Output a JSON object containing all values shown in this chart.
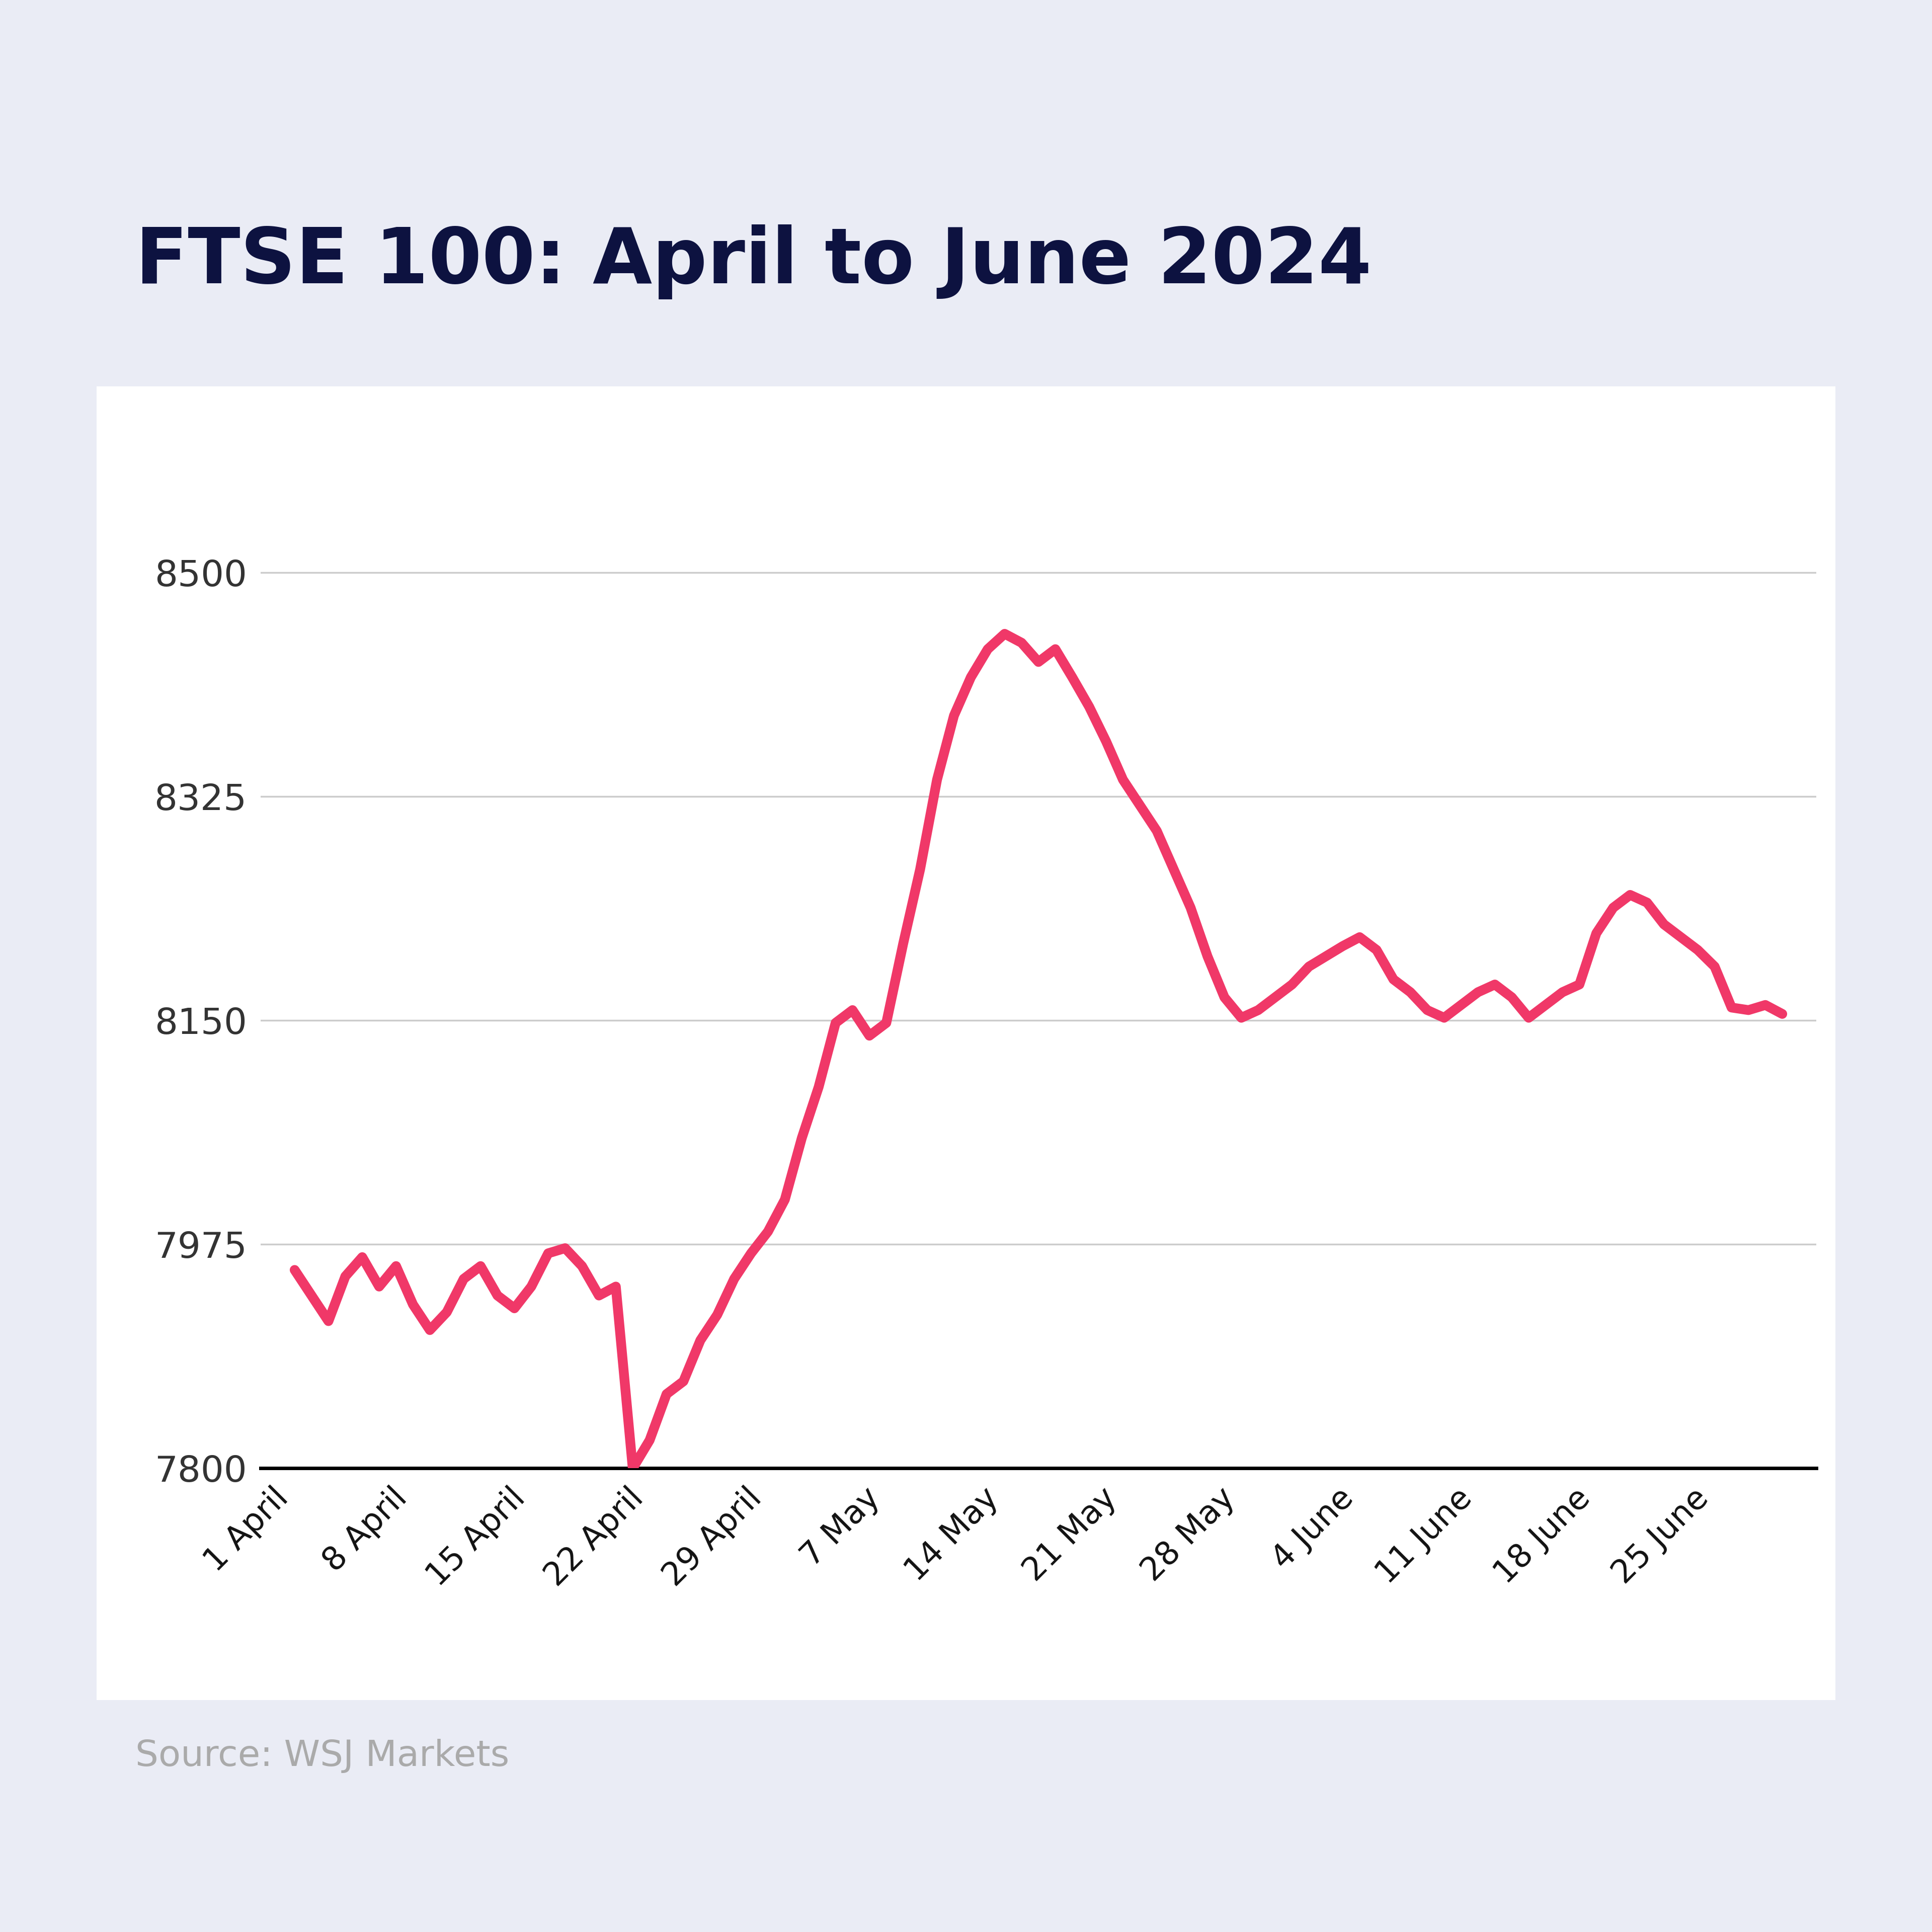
{
  "title": "FTSE 100: April to June 2024",
  "source": "Source: WSJ Markets",
  "background_color": "#eaecf5",
  "chart_background": "#ffffff",
  "line_color": "#f03868",
  "line_width": 14,
  "title_color": "#0d1240",
  "source_color": "#aaaaaa",
  "yticks": [
    7800,
    7975,
    8150,
    8325,
    8500
  ],
  "ylim_min": 7800,
  "ylim_max": 8600,
  "xtick_labels": [
    "1 April",
    "8 April",
    "15 April",
    "22 April",
    "29 April",
    "7 May",
    "14 May",
    "21 May",
    "28 May",
    "4 June",
    "11 June",
    "18 June",
    "25 June"
  ],
  "xtick_positions": [
    0,
    7,
    14,
    21,
    28,
    35,
    42,
    49,
    56,
    63,
    70,
    77,
    84
  ],
  "x_values": [
    0,
    1,
    2,
    3,
    4,
    5,
    6,
    7,
    8,
    9,
    10,
    11,
    12,
    13,
    14,
    15,
    16,
    17,
    18,
    19,
    20,
    21,
    22,
    23,
    24,
    25,
    26,
    27,
    28,
    29,
    30,
    31,
    32,
    33,
    34,
    35,
    36,
    37,
    38,
    39,
    40,
    41,
    42,
    43,
    44,
    45,
    46,
    47,
    48,
    49,
    50,
    51,
    52,
    53,
    54,
    55,
    56,
    57,
    58,
    59,
    60,
    61,
    62,
    63,
    64,
    65,
    66,
    67,
    68,
    69,
    70,
    71,
    72,
    73,
    74,
    75,
    76,
    77,
    78,
    79,
    80,
    81,
    82,
    83,
    84,
    85,
    86,
    87,
    88
  ],
  "y_values": [
    7955,
    7935,
    7915,
    7950,
    7965,
    7942,
    7958,
    7928,
    7908,
    7922,
    7948,
    7958,
    7935,
    7925,
    7942,
    7968,
    7972,
    7958,
    7935,
    7942,
    7800,
    7822,
    7858,
    7868,
    7900,
    7920,
    7948,
    7968,
    7985,
    8010,
    8058,
    8098,
    8148,
    8158,
    8138,
    8148,
    8210,
    8268,
    8338,
    8388,
    8418,
    8440,
    8452,
    8445,
    8430,
    8440,
    8418,
    8395,
    8368,
    8338,
    8318,
    8298,
    8268,
    8238,
    8200,
    8168,
    8152,
    8158,
    8168,
    8178,
    8192,
    8200,
    8208,
    8215,
    8205,
    8182,
    8172,
    8158,
    8152,
    8162,
    8172,
    8178,
    8168,
    8152,
    8162,
    8172,
    8178,
    8218,
    8238,
    8248,
    8242,
    8225,
    8215,
    8205,
    8192,
    8160,
    8158,
    8162,
    8155
  ]
}
